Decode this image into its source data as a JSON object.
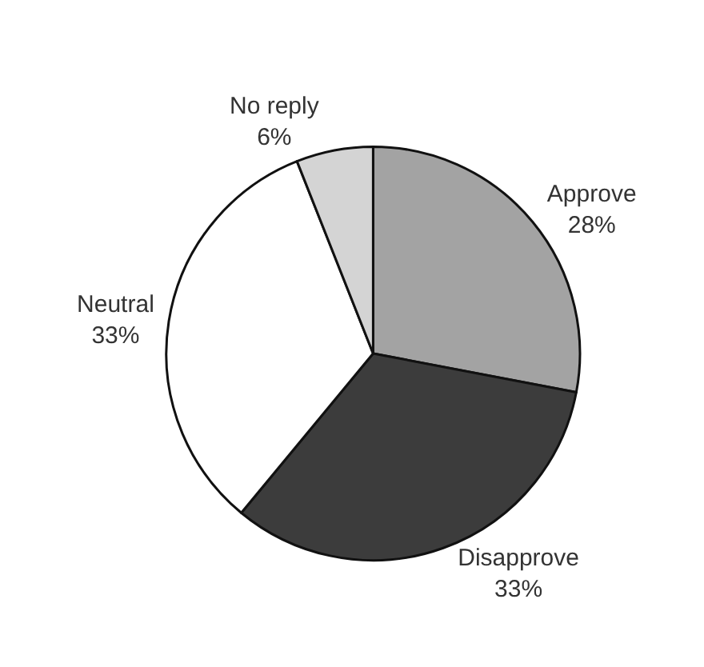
{
  "chart_data": {
    "type": "pie",
    "categories": [
      "Approve",
      "Disapprove",
      "Neutral",
      "No reply"
    ],
    "values": [
      28,
      33,
      33,
      6
    ],
    "value_labels": [
      "28%",
      "33%",
      "33%",
      "6%"
    ],
    "colors": [
      "#a3a3a3",
      "#3c3c3c",
      "#ffffff",
      "#d4d4d4"
    ],
    "legend": false
  }
}
